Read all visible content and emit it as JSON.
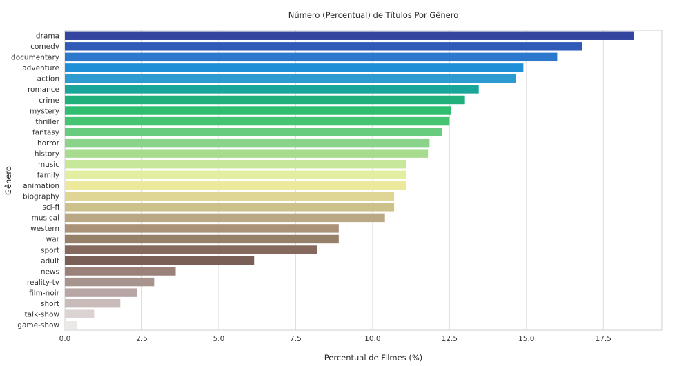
{
  "chart_data": {
    "type": "bar",
    "orientation": "horizontal",
    "title": "Número (Percentual) de Títulos Por Gênero",
    "xlabel": "Percentual de Filmes (%)",
    "ylabel": "Gênero",
    "xlim": [
      0,
      19.4
    ],
    "xticks": [
      0.0,
      2.5,
      5.0,
      7.5,
      10.0,
      12.5,
      15.0,
      17.5
    ],
    "xtick_labels": [
      "0.0",
      "2.5",
      "5.0",
      "7.5",
      "10.0",
      "12.5",
      "15.0",
      "17.5"
    ],
    "grid": "vertical",
    "categories": [
      "drama",
      "comedy",
      "documentary",
      "adventure",
      "action",
      "romance",
      "crime",
      "mystery",
      "thriller",
      "fantasy",
      "horror",
      "history",
      "music",
      "family",
      "animation",
      "biography",
      "sci-fi",
      "musical",
      "western",
      "war",
      "sport",
      "adult",
      "news",
      "reality-tv",
      "film-noir",
      "short",
      "talk-show",
      "game-show"
    ],
    "values": [
      18.5,
      16.8,
      16.0,
      14.9,
      14.65,
      13.45,
      13.0,
      12.55,
      12.5,
      12.25,
      11.85,
      11.8,
      11.1,
      11.1,
      11.1,
      10.7,
      10.7,
      10.4,
      8.9,
      8.9,
      8.2,
      6.15,
      3.6,
      2.9,
      2.35,
      1.8,
      0.95,
      0.4
    ],
    "colors": [
      "#3345a1",
      "#2f5bb6",
      "#2b78cc",
      "#1f90d8",
      "#2d9bd0",
      "#1aa59a",
      "#1fb07c",
      "#2fbd6f",
      "#45c472",
      "#68cc7e",
      "#89d38b",
      "#a7dc8f",
      "#c7e79a",
      "#e2efa0",
      "#ece99d",
      "#dfd696",
      "#cdc18b",
      "#b9a883",
      "#a99277",
      "#97806a",
      "#84695c",
      "#7a5f57",
      "#9a827b",
      "#a8948f",
      "#b7a6a3",
      "#c8bbb9",
      "#dbd3d2",
      "#ebe8e8"
    ]
  }
}
